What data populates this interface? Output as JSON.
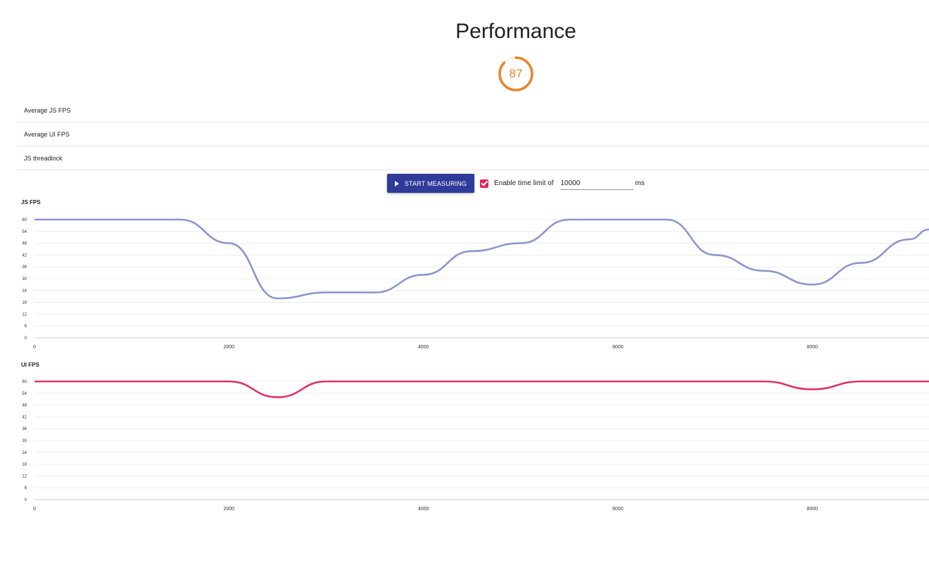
{
  "page": {
    "title": "Performance",
    "score": "87",
    "score_value": 87,
    "score_color": "#e8852a"
  },
  "metrics": [
    {
      "label": "Average JS FPS"
    },
    {
      "label": "Average UI FPS"
    },
    {
      "label": "JS threadlock"
    }
  ],
  "controls": {
    "start_label": "START MEASURING",
    "checkbox_checked": true,
    "checkbox_label": "Enable time limit of",
    "limit_value": "10000",
    "unit": "ms",
    "accent": "#2f3b99",
    "checkbox_color": "#e0245e"
  },
  "chart_data": [
    {
      "type": "line",
      "title": "JS FPS",
      "color": "#8b96cc",
      "xlim": [
        0,
        9200
      ],
      "ylim": [
        0,
        60
      ],
      "yticks": [
        0,
        6,
        12,
        18,
        24,
        30,
        36,
        42,
        48,
        54,
        60
      ],
      "xticks": [
        0,
        2000,
        4000,
        6000,
        8000
      ],
      "x": [
        0,
        1500,
        2000,
        2500,
        3000,
        3500,
        4000,
        4500,
        5000,
        5500,
        6000,
        6500,
        7000,
        7500,
        8000,
        8500,
        9000,
        9200
      ],
      "y": [
        60,
        60,
        48,
        20,
        23,
        23,
        32,
        44,
        48,
        60,
        60,
        60,
        42,
        34,
        27,
        38,
        50,
        55
      ]
    },
    {
      "type": "line",
      "title": "UI FPS",
      "color": "#e0306e",
      "xlim": [
        0,
        9200
      ],
      "ylim": [
        0,
        60
      ],
      "yticks": [
        0,
        6,
        12,
        18,
        24,
        30,
        36,
        42,
        48,
        54,
        60
      ],
      "xticks": [
        0,
        2000,
        4000,
        6000,
        8000
      ],
      "x": [
        0,
        1500,
        2000,
        2500,
        3000,
        3500,
        4000,
        4500,
        5000,
        5500,
        6000,
        6500,
        7000,
        7500,
        8000,
        8500,
        9000,
        9200
      ],
      "y": [
        60,
        60,
        60,
        52,
        60,
        60,
        60,
        60,
        60,
        60,
        60,
        60,
        60,
        60,
        56,
        60,
        60,
        60
      ]
    }
  ]
}
